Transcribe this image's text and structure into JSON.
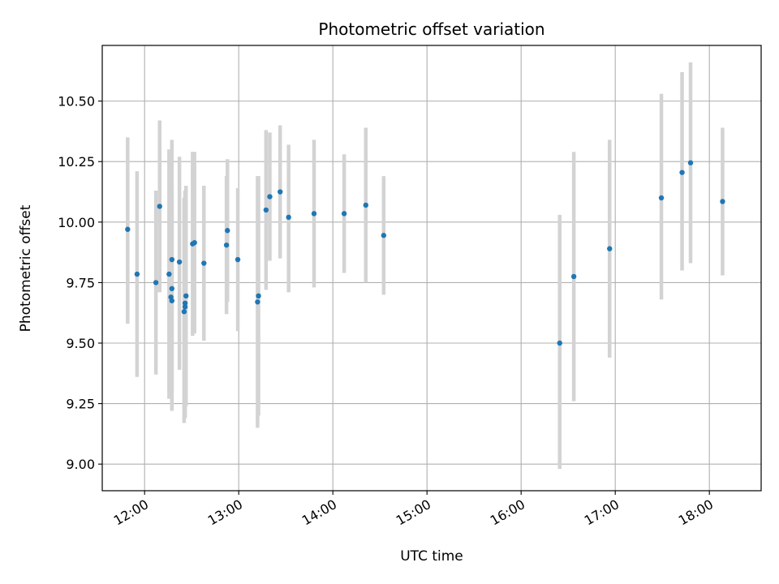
{
  "chart_data": {
    "type": "scatter",
    "title": "Photometric offset variation",
    "xlabel": "UTC time",
    "ylabel": "Photometric offset",
    "x_unit": "time of day (hours)",
    "xlim": [
      11.55,
      18.55
    ],
    "ylim": [
      8.89,
      10.73
    ],
    "x_ticks": [
      {
        "value": 12,
        "label": "12:00"
      },
      {
        "value": 13,
        "label": "13:00"
      },
      {
        "value": 14,
        "label": "14:00"
      },
      {
        "value": 15,
        "label": "15:00"
      },
      {
        "value": 16,
        "label": "16:00"
      },
      {
        "value": 17,
        "label": "17:00"
      },
      {
        "value": 18,
        "label": "18:00"
      }
    ],
    "y_ticks": [
      {
        "value": 9.0,
        "label": "9.00"
      },
      {
        "value": 9.25,
        "label": "9.25"
      },
      {
        "value": 9.5,
        "label": "9.50"
      },
      {
        "value": 9.75,
        "label": "9.75"
      },
      {
        "value": 10.0,
        "label": "10.00"
      },
      {
        "value": 10.25,
        "label": "10.25"
      },
      {
        "value": 10.5,
        "label": "10.50"
      }
    ],
    "grid": true,
    "colors": {
      "point": "#1f77b4",
      "errorbar": "#d3d3d3",
      "grid": "#b0b0b0"
    },
    "points": [
      {
        "x": 11.82,
        "y": 9.97,
        "ylow": 9.58,
        "yhigh": 10.35
      },
      {
        "x": 11.92,
        "y": 9.785,
        "ylow": 9.36,
        "yhigh": 10.21
      },
      {
        "x": 12.12,
        "y": 9.75,
        "ylow": 9.37,
        "yhigh": 10.13
      },
      {
        "x": 12.16,
        "y": 10.065,
        "ylow": 9.71,
        "yhigh": 10.42
      },
      {
        "x": 12.26,
        "y": 9.785,
        "ylow": 9.27,
        "yhigh": 10.3
      },
      {
        "x": 12.28,
        "y": 9.69,
        "ylow": 9.3,
        "yhigh": 10.08
      },
      {
        "x": 12.29,
        "y": 9.675,
        "ylow": 9.25,
        "yhigh": 10.1
      },
      {
        "x": 12.29,
        "y": 9.725,
        "ylow": 9.3,
        "yhigh": 10.15
      },
      {
        "x": 12.29,
        "y": 9.845,
        "ylow": 9.22,
        "yhigh": 10.34
      },
      {
        "x": 12.37,
        "y": 9.835,
        "ylow": 9.39,
        "yhigh": 10.27
      },
      {
        "x": 12.42,
        "y": 9.63,
        "ylow": 9.17,
        "yhigh": 10.1
      },
      {
        "x": 12.43,
        "y": 9.665,
        "ylow": 9.2,
        "yhigh": 10.13
      },
      {
        "x": 12.43,
        "y": 9.65,
        "ylow": 9.19,
        "yhigh": 10.11
      },
      {
        "x": 12.44,
        "y": 9.695,
        "ylow": 9.24,
        "yhigh": 10.15
      },
      {
        "x": 12.51,
        "y": 9.91,
        "ylow": 9.53,
        "yhigh": 10.29
      },
      {
        "x": 12.53,
        "y": 9.915,
        "ylow": 9.54,
        "yhigh": 10.29
      },
      {
        "x": 12.63,
        "y": 9.83,
        "ylow": 9.51,
        "yhigh": 10.15
      },
      {
        "x": 12.87,
        "y": 9.905,
        "ylow": 9.62,
        "yhigh": 10.19
      },
      {
        "x": 12.88,
        "y": 9.965,
        "ylow": 9.67,
        "yhigh": 10.26
      },
      {
        "x": 12.99,
        "y": 9.845,
        "ylow": 9.55,
        "yhigh": 10.14
      },
      {
        "x": 13.2,
        "y": 9.67,
        "ylow": 9.15,
        "yhigh": 10.19
      },
      {
        "x": 13.21,
        "y": 9.695,
        "ylow": 9.2,
        "yhigh": 10.19
      },
      {
        "x": 13.29,
        "y": 10.05,
        "ylow": 9.72,
        "yhigh": 10.38
      },
      {
        "x": 13.33,
        "y": 10.105,
        "ylow": 9.84,
        "yhigh": 10.37
      },
      {
        "x": 13.44,
        "y": 10.125,
        "ylow": 9.85,
        "yhigh": 10.4
      },
      {
        "x": 13.53,
        "y": 10.02,
        "ylow": 9.71,
        "yhigh": 10.32
      },
      {
        "x": 13.8,
        "y": 10.035,
        "ylow": 9.73,
        "yhigh": 10.34
      },
      {
        "x": 14.12,
        "y": 10.035,
        "ylow": 9.79,
        "yhigh": 10.28
      },
      {
        "x": 14.35,
        "y": 10.07,
        "ylow": 9.75,
        "yhigh": 10.39
      },
      {
        "x": 14.54,
        "y": 9.945,
        "ylow": 9.7,
        "yhigh": 10.19
      },
      {
        "x": 16.41,
        "y": 9.5,
        "ylow": 8.98,
        "yhigh": 10.03
      },
      {
        "x": 16.56,
        "y": 9.775,
        "ylow": 9.26,
        "yhigh": 10.29
      },
      {
        "x": 16.94,
        "y": 9.89,
        "ylow": 9.44,
        "yhigh": 10.34
      },
      {
        "x": 17.49,
        "y": 10.1,
        "ylow": 9.68,
        "yhigh": 10.53
      },
      {
        "x": 17.71,
        "y": 10.205,
        "ylow": 9.8,
        "yhigh": 10.62
      },
      {
        "x": 17.8,
        "y": 10.245,
        "ylow": 9.83,
        "yhigh": 10.66
      },
      {
        "x": 18.14,
        "y": 10.085,
        "ylow": 9.78,
        "yhigh": 10.39
      }
    ]
  }
}
